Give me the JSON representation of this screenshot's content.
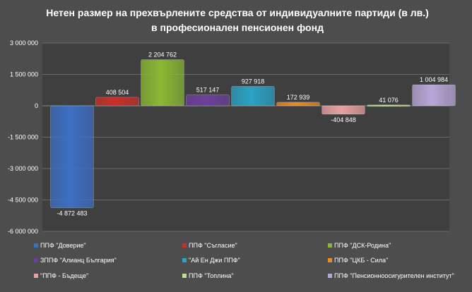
{
  "chart_data": {
    "type": "bar",
    "title_lines": [
      "Нетен размер на прехвърлените средства от индивидуалните партиди (в лв.)",
      "в професионален пенсионен фонд"
    ],
    "ylim": [
      -6000000,
      3000000
    ],
    "y_ticks": [
      3000000,
      1500000,
      0,
      -1500000,
      -3000000,
      -4500000,
      -6000000
    ],
    "y_tick_labels": [
      "3 000 000",
      "1 500 000",
      "0",
      "-1 500 000",
      "-3 000 000",
      "-4 500 000",
      "-6 000 000"
    ],
    "grid": true,
    "legend_position": "bottom",
    "series": [
      {
        "name": "ППФ \"Доверие\"",
        "value": -4872483,
        "label": "-4 872 483",
        "color": "#3d6fc4"
      },
      {
        "name": "ППФ \"Съгласие\"",
        "value": 408504,
        "label": "408 504",
        "color": "#c8302b"
      },
      {
        "name": "ППФ \"ДСК-Родина\"",
        "value": 2204762,
        "label": "2 204 762",
        "color": "#8ab833"
      },
      {
        "name": "ЗППФ \"Алианц България\"",
        "value": 517147,
        "label": "517 147",
        "color": "#6d3f9c"
      },
      {
        "name": "\"Ай Ен Джи ППФ\"",
        "value": 927918,
        "label": "927 918",
        "color": "#2aa3c4"
      },
      {
        "name": "ППФ \"ЦКБ - Сила\"",
        "value": 172939,
        "label": "172 939",
        "color": "#ef8a1d"
      },
      {
        "name": "\"ППФ - Бъдеще\"",
        "value": -404848,
        "label": "-404 848",
        "color": "#e8a0a0"
      },
      {
        "name": "ППФ \"Топлина\"",
        "value": 41076,
        "label": "41 076",
        "color": "#bfe08a"
      },
      {
        "name": "ППФ \"Пенсионноосигурителен институт\"",
        "value": 1004984,
        "label": "1 004 984",
        "color": "#b9a6d8"
      }
    ]
  }
}
